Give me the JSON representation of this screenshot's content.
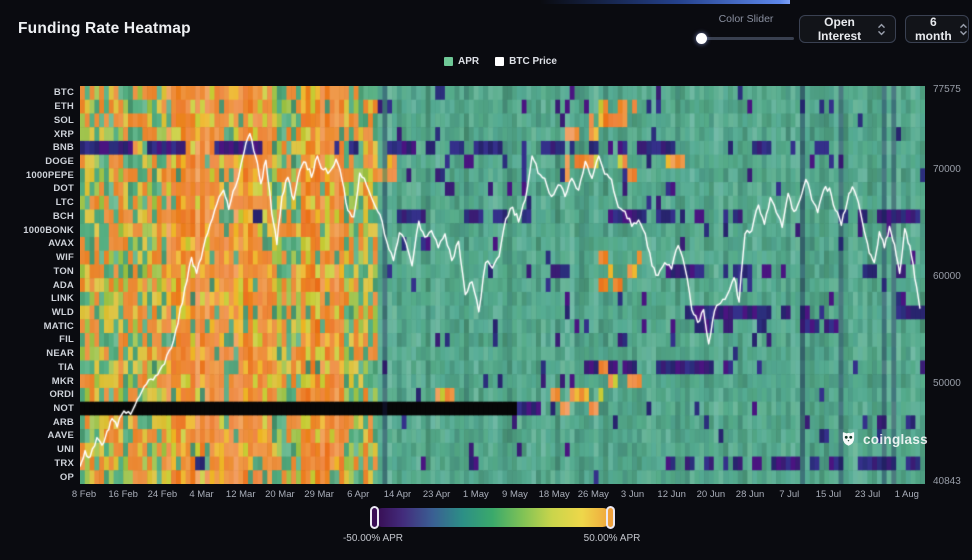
{
  "header": {
    "title": "Funding Rate Heatmap"
  },
  "controls": {
    "color_slider_label": "Color Slider",
    "metric_dropdown": "Open Interest",
    "range_dropdown": "6 month"
  },
  "legend": {
    "apr": "APR",
    "btc_price": "BTC Price"
  },
  "watermark": "coinglass",
  "colorbar": {
    "min_label": "-50.00% APR",
    "max_label": "50.00% APR",
    "stops": [
      "#36094e",
      "#432c7c",
      "#3a5f93",
      "#2c8f86",
      "#3aa96b",
      "#7fc256",
      "#cad54b",
      "#eed74a",
      "#f0a23c"
    ]
  },
  "colors": {
    "background": "#0a0b10",
    "plot_background": "#000000",
    "accent_blue": "#5d87ea",
    "apr_swatch": "#6fc897",
    "btc_swatch": "#ffffff",
    "line": "#ffffff",
    "cool_base": "#52aa8d",
    "hot_base": "#f0953f",
    "dark_variants": [
      "#2b2e7c",
      "#3a1c74",
      "#4a1480",
      "#28246e",
      "#34308a"
    ],
    "black_cell": "#060606"
  },
  "chart_data": {
    "type": "heatmap",
    "title": "Funding Rate Heatmap",
    "unit": "APR %",
    "value_range": [
      -50,
      50
    ],
    "time_bins": 176,
    "symbols": [
      "BTC",
      "ETH",
      "SOL",
      "XRP",
      "BNB",
      "DOGE",
      "1000PEPE",
      "DOT",
      "LTC",
      "BCH",
      "1000BONK",
      "AVAX",
      "WIF",
      "TON",
      "ADA",
      "LINK",
      "WLD",
      "MATIC",
      "FIL",
      "NEAR",
      "TIA",
      "MKR",
      "ORDI",
      "NOT",
      "ARB",
      "AAVE",
      "UNI",
      "TRX",
      "OP"
    ],
    "x_labels": [
      "8 Feb",
      "16 Feb",
      "24 Feb",
      "4 Mar",
      "12 Mar",
      "20 Mar",
      "29 Mar",
      "6 Apr",
      "14 Apr",
      "23 Apr",
      "1 May",
      "9 May",
      "18 May",
      "26 May",
      "3 Jun",
      "12 Jun",
      "20 Jun",
      "28 Jun",
      "7 Jul",
      "15 Jul",
      "23 Jul",
      "1 Aug"
    ],
    "right_axis": {
      "labels": [
        "77575",
        "70000",
        "60000",
        "50000",
        "40843"
      ],
      "values": [
        77575,
        70000,
        60000,
        50000,
        40843
      ],
      "min": 40843,
      "max": 77575
    },
    "bands": [
      {
        "from": 0.0,
        "to": 0.1,
        "level": "mixed"
      },
      {
        "from": 0.1,
        "to": 0.225,
        "level": "hot"
      },
      {
        "from": 0.225,
        "to": 0.26,
        "level": "mixed"
      },
      {
        "from": 0.26,
        "to": 0.315,
        "level": "hot"
      },
      {
        "from": 0.315,
        "to": 0.35,
        "level": "mixed"
      },
      {
        "from": 0.35,
        "to": 1.0,
        "level": "cool"
      }
    ],
    "hot_patches": [
      {
        "rows": [
          "DOGE",
          "1000PEPE"
        ],
        "from": 0.335,
        "to": 0.375,
        "density": 0.7
      },
      {
        "rows": [
          "XRP",
          "DOGE",
          "1000PEPE"
        ],
        "from": 0.575,
        "to": 0.67,
        "density": 0.45
      },
      {
        "rows": [
          "ETH",
          "SOL"
        ],
        "from": 0.6,
        "to": 0.66,
        "density": 0.4
      },
      {
        "rows": [
          "WIF",
          "TON",
          "ADA",
          "MKR",
          "TIA"
        ],
        "from": 0.615,
        "to": 0.665,
        "density": 0.35
      },
      {
        "rows": [
          "ORDI",
          "NOT"
        ],
        "from": 0.555,
        "to": 0.62,
        "density": 0.55
      },
      {
        "rows": [
          "DOGE"
        ],
        "from": 0.695,
        "to": 0.715,
        "density": 0.9
      },
      {
        "rows": [
          "ORDI"
        ],
        "from": 0.35,
        "to": 0.45,
        "density": 0.35
      }
    ],
    "dark_segments": {
      "BNB": [
        [
          0.0,
          0.062,
          0.9
        ],
        [
          0.078,
          0.125,
          0.7
        ],
        [
          0.16,
          0.23,
          0.9
        ],
        [
          0.3,
          0.335,
          0.5
        ],
        [
          0.355,
          0.435,
          0.55
        ],
        [
          0.44,
          0.53,
          0.75
        ],
        [
          0.545,
          0.575,
          0.6
        ],
        [
          0.6,
          0.645,
          0.45
        ],
        [
          0.66,
          0.71,
          0.35
        ],
        [
          0.79,
          0.845,
          0.45
        ],
        [
          0.87,
          0.91,
          0.35
        ]
      ],
      "DOGE": [
        [
          0.45,
          0.505,
          0.5
        ],
        [
          0.525,
          0.55,
          0.35
        ]
      ],
      "BCH": [
        [
          0.19,
          0.215,
          0.55
        ],
        [
          0.37,
          0.435,
          0.5
        ],
        [
          0.455,
          0.505,
          0.65
        ],
        [
          0.52,
          0.565,
          0.4
        ],
        [
          0.625,
          0.705,
          0.65
        ],
        [
          0.715,
          0.785,
          0.55
        ],
        [
          0.92,
          0.995,
          0.65
        ]
      ],
      "TON": [
        [
          0.53,
          0.578,
          0.85
        ],
        [
          0.675,
          0.75,
          0.55
        ],
        [
          0.755,
          0.835,
          0.65
        ],
        [
          0.925,
          0.975,
          0.45
        ]
      ],
      "WLD": [
        [
          0.695,
          0.795,
          0.75
        ],
        [
          0.8,
          0.865,
          0.55
        ],
        [
          0.955,
          0.995,
          0.5
        ]
      ],
      "MATIC": [
        [
          0.705,
          0.775,
          0.4
        ],
        [
          0.855,
          0.895,
          0.35
        ]
      ],
      "TIA": [
        [
          0.595,
          0.635,
          0.5
        ],
        [
          0.64,
          0.725,
          0.75
        ],
        [
          0.73,
          0.785,
          0.5
        ]
      ],
      "TRX": [
        [
          0.135,
          0.19,
          0.45
        ],
        [
          0.695,
          0.765,
          0.6
        ],
        [
          0.77,
          0.875,
          0.75
        ],
        [
          0.885,
          0.995,
          0.65
        ]
      ],
      "NOT": [
        [
          0.515,
          0.548,
          1.0
        ]
      ],
      "ARB": [
        [
          0.94,
          0.99,
          0.35
        ]
      ],
      "OP": [
        [
          0.9,
          0.975,
          0.35
        ]
      ],
      "UNI": [
        [
          0.62,
          0.65,
          0.3
        ]
      ]
    },
    "black_segments": {
      "NOT": [
        [
          0.0,
          0.515
        ]
      ]
    },
    "btc_line": [
      [
        0.0,
        42200
      ],
      [
        0.006,
        43700
      ],
      [
        0.012,
        43100
      ],
      [
        0.02,
        44900
      ],
      [
        0.026,
        44200
      ],
      [
        0.032,
        45500
      ],
      [
        0.038,
        46700
      ],
      [
        0.044,
        45900
      ],
      [
        0.052,
        47400
      ],
      [
        0.06,
        47100
      ],
      [
        0.068,
        48500
      ],
      [
        0.076,
        49700
      ],
      [
        0.084,
        50400
      ],
      [
        0.092,
        50800
      ],
      [
        0.1,
        51800
      ],
      [
        0.108,
        53300
      ],
      [
        0.116,
        55600
      ],
      [
        0.124,
        58900
      ],
      [
        0.132,
        61800
      ],
      [
        0.138,
        60300
      ],
      [
        0.146,
        62700
      ],
      [
        0.154,
        64900
      ],
      [
        0.162,
        66800
      ],
      [
        0.17,
        68100
      ],
      [
        0.176,
        66300
      ],
      [
        0.184,
        68400
      ],
      [
        0.194,
        71600
      ],
      [
        0.201,
        73400
      ],
      [
        0.208,
        71200
      ],
      [
        0.214,
        68700
      ],
      [
        0.22,
        70900
      ],
      [
        0.227,
        65900
      ],
      [
        0.233,
        63000
      ],
      [
        0.239,
        67500
      ],
      [
        0.246,
        69300
      ],
      [
        0.253,
        67200
      ],
      [
        0.26,
        69900
      ],
      [
        0.267,
        70700
      ],
      [
        0.274,
        69300
      ],
      [
        0.281,
        71300
      ],
      [
        0.288,
        70000
      ],
      [
        0.296,
        69900
      ],
      [
        0.303,
        71000
      ],
      [
        0.31,
        69100
      ],
      [
        0.317,
        66200
      ],
      [
        0.324,
        65600
      ],
      [
        0.331,
        69700
      ],
      [
        0.339,
        68600
      ],
      [
        0.347,
        67000
      ],
      [
        0.355,
        65800
      ],
      [
        0.363,
        63300
      ],
      [
        0.371,
        61500
      ],
      [
        0.378,
        64100
      ],
      [
        0.386,
        63100
      ],
      [
        0.393,
        61000
      ],
      [
        0.401,
        65200
      ],
      [
        0.408,
        63700
      ],
      [
        0.416,
        64300
      ],
      [
        0.424,
        62700
      ],
      [
        0.432,
        64000
      ],
      [
        0.44,
        61500
      ],
      [
        0.448,
        63300
      ],
      [
        0.456,
        58300
      ],
      [
        0.464,
        59500
      ],
      [
        0.472,
        56700
      ],
      [
        0.48,
        61300
      ],
      [
        0.488,
        60800
      ],
      [
        0.496,
        61900
      ],
      [
        0.504,
        65400
      ],
      [
        0.512,
        66500
      ],
      [
        0.519,
        65100
      ],
      [
        0.527,
        67200
      ],
      [
        0.535,
        71300
      ],
      [
        0.542,
        69700
      ],
      [
        0.55,
        69200
      ],
      [
        0.558,
        67500
      ],
      [
        0.566,
        68600
      ],
      [
        0.574,
        67500
      ],
      [
        0.582,
        69200
      ],
      [
        0.59,
        68100
      ],
      [
        0.598,
        70800
      ],
      [
        0.606,
        69200
      ],
      [
        0.614,
        71300
      ],
      [
        0.621,
        69600
      ],
      [
        0.629,
        69100
      ],
      [
        0.637,
        66500
      ],
      [
        0.645,
        66100
      ],
      [
        0.653,
        64700
      ],
      [
        0.661,
        65300
      ],
      [
        0.669,
        64000
      ],
      [
        0.677,
        61000
      ],
      [
        0.684,
        60100
      ],
      [
        0.692,
        61300
      ],
      [
        0.7,
        60700
      ],
      [
        0.708,
        62900
      ],
      [
        0.716,
        60800
      ],
      [
        0.724,
        56900
      ],
      [
        0.731,
        55700
      ],
      [
        0.738,
        56900
      ],
      [
        0.744,
        53700
      ],
      [
        0.751,
        56800
      ],
      [
        0.758,
        57500
      ],
      [
        0.766,
        58300
      ],
      [
        0.774,
        59900
      ],
      [
        0.78,
        57600
      ],
      [
        0.787,
        64000
      ],
      [
        0.795,
        64300
      ],
      [
        0.803,
        66700
      ],
      [
        0.81,
        64900
      ],
      [
        0.817,
        67400
      ],
      [
        0.824,
        66000
      ],
      [
        0.831,
        64600
      ],
      [
        0.838,
        67800
      ],
      [
        0.845,
        66100
      ],
      [
        0.852,
        67200
      ],
      [
        0.859,
        69100
      ],
      [
        0.866,
        67200
      ],
      [
        0.873,
        66000
      ],
      [
        0.88,
        68100
      ],
      [
        0.887,
        68300
      ],
      [
        0.894,
        66200
      ],
      [
        0.901,
        64800
      ],
      [
        0.908,
        67000
      ],
      [
        0.914,
        68400
      ],
      [
        0.921,
        67000
      ],
      [
        0.928,
        64300
      ],
      [
        0.934,
        62200
      ],
      [
        0.94,
        61300
      ],
      [
        0.946,
        64200
      ],
      [
        0.952,
        62700
      ],
      [
        0.958,
        64700
      ],
      [
        0.964,
        63000
      ],
      [
        0.97,
        60300
      ],
      [
        0.976,
        64500
      ],
      [
        0.982,
        62900
      ],
      [
        0.988,
        59800
      ],
      [
        0.994,
        57000
      ]
    ]
  }
}
